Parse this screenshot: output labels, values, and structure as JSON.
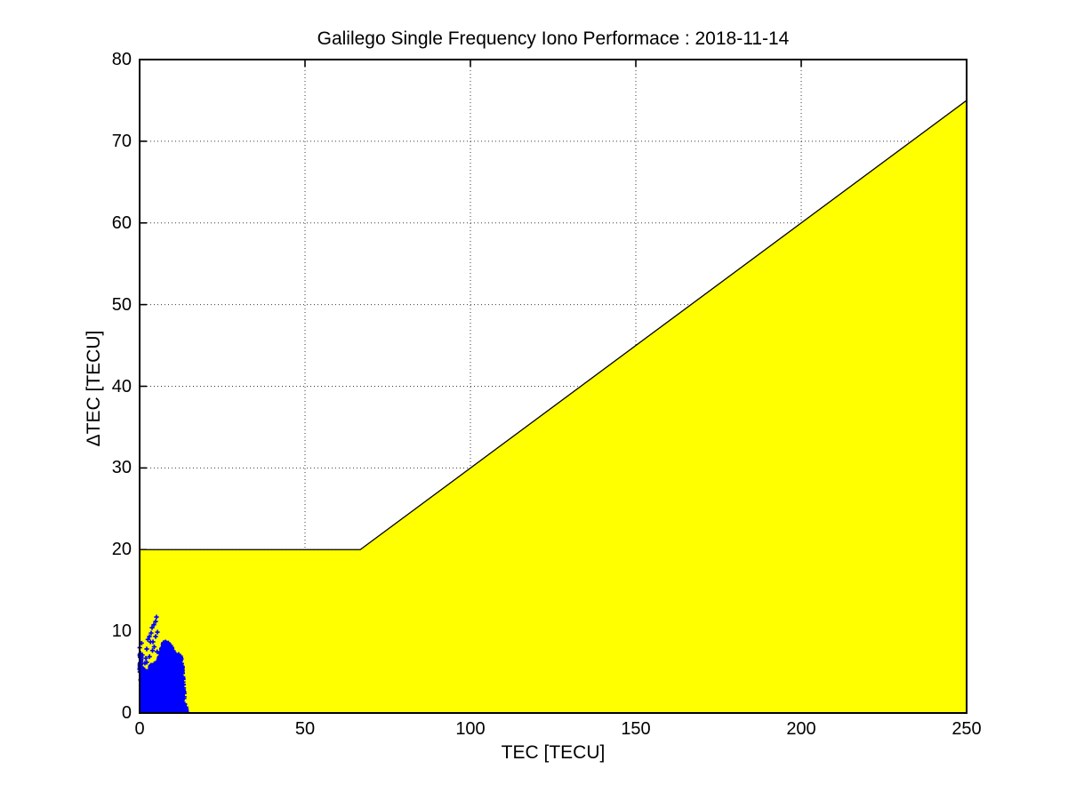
{
  "chart_data": {
    "type": "scatter",
    "title": "Galilego Single Frequency Iono Performace : 2018-11-14",
    "xlabel": "TEC [TECU]",
    "ylabel": "ΔTEC [TECU]",
    "xlim": [
      0,
      250
    ],
    "ylim": [
      0,
      80
    ],
    "xticks": [
      0,
      50,
      100,
      150,
      200,
      250
    ],
    "yticks": [
      0,
      10,
      20,
      30,
      40,
      50,
      60,
      70,
      80
    ],
    "grid": true,
    "grid_style": "dotted",
    "legend": "none",
    "colors": {
      "region_fill": "#ffff00",
      "region_edge": "#000000",
      "scatter": "#0000ff",
      "axes": "#000000",
      "grid": "#3a3a3a",
      "background": "#ffffff"
    },
    "threshold_region": {
      "rule": "bound = max(20, 0.3 * TEC)",
      "vertices": [
        [
          0,
          0
        ],
        [
          0,
          20
        ],
        [
          66.7,
          20
        ],
        [
          250,
          75
        ],
        [
          250,
          0
        ]
      ]
    },
    "envelope_line": [
      [
        0,
        20
      ],
      [
        66.7,
        20
      ],
      [
        250,
        75
      ]
    ],
    "scatter_series": {
      "marker": "plus",
      "color": "#0000ff",
      "x_range": [
        0,
        14.4
      ],
      "y_range": [
        0,
        12.1
      ],
      "dense_blob_outline": [
        [
          0,
          0
        ],
        [
          0,
          5.0
        ],
        [
          0.15,
          5.9
        ],
        [
          0.4,
          5.2
        ],
        [
          0.7,
          5.6
        ],
        [
          1.0,
          4.8
        ],
        [
          1.4,
          5.1
        ],
        [
          1.8,
          4.5
        ],
        [
          2.2,
          5.0
        ],
        [
          2.6,
          4.4
        ],
        [
          3.0,
          5.1
        ],
        [
          3.4,
          5.6
        ],
        [
          3.8,
          5.1
        ],
        [
          4.2,
          5.5
        ],
        [
          4.6,
          5.9
        ],
        [
          5.0,
          5.6
        ],
        [
          5.4,
          6.0
        ],
        [
          5.8,
          6.3
        ],
        [
          6.2,
          6.8
        ],
        [
          6.6,
          7.5
        ],
        [
          7.0,
          8.0
        ],
        [
          7.4,
          8.5
        ],
        [
          7.7,
          8.2
        ],
        [
          8.0,
          8.4
        ],
        [
          8.3,
          8.1
        ],
        [
          8.7,
          8.25
        ],
        [
          9.1,
          8.0
        ],
        [
          9.5,
          7.9
        ],
        [
          9.9,
          7.5
        ],
        [
          10.3,
          7.2
        ],
        [
          10.7,
          6.9
        ],
        [
          11.2,
          6.75
        ],
        [
          11.8,
          6.85
        ],
        [
          12.3,
          6.7
        ],
        [
          12.7,
          6.4
        ],
        [
          12.9,
          5.6
        ],
        [
          13.1,
          4.6
        ],
        [
          13.3,
          3.2
        ],
        [
          13.5,
          1.8
        ],
        [
          13.65,
          0.9
        ],
        [
          13.9,
          0.5
        ],
        [
          14.3,
          0.25
        ],
        [
          14.4,
          0
        ]
      ],
      "outlier_points": [
        [
          5.1,
          11.75
        ],
        [
          4.84,
          11.2
        ],
        [
          4.3,
          10.8
        ],
        [
          3.76,
          10.45
        ],
        [
          3.49,
          9.79
        ],
        [
          2.96,
          9.36
        ],
        [
          4.84,
          9.36
        ],
        [
          4.03,
          8.71
        ],
        [
          5.38,
          9.9
        ],
        [
          3.3,
          8.7
        ],
        [
          0.6,
          8.55
        ],
        [
          0.05,
          8.0
        ],
        [
          2.15,
          7.84
        ],
        [
          3.9,
          7.65
        ],
        [
          5.3,
          7.5
        ],
        [
          0.8,
          7.1
        ],
        [
          3.0,
          6.9
        ],
        [
          2.15,
          6.2
        ],
        [
          0.1,
          6.0
        ],
        [
          3.5,
          5.85
        ],
        [
          4.8,
          5.65
        ],
        [
          1.3,
          5.3
        ],
        [
          2.6,
          4.9
        ],
        [
          6.1,
          7.3
        ],
        [
          6.6,
          7.9
        ],
        [
          7.8,
          8.7
        ],
        [
          8.4,
          8.3
        ],
        [
          1.9,
          6.7
        ],
        [
          0.3,
          7.3
        ],
        [
          5.9,
          6.8
        ],
        [
          4.4,
          8.1
        ],
        [
          2.5,
          9.0
        ],
        [
          1.6,
          6.1
        ],
        [
          0.45,
          6.6
        ]
      ],
      "speckle": {
        "seed": 7,
        "count": 420,
        "edge_band": 0.9
      }
    }
  }
}
